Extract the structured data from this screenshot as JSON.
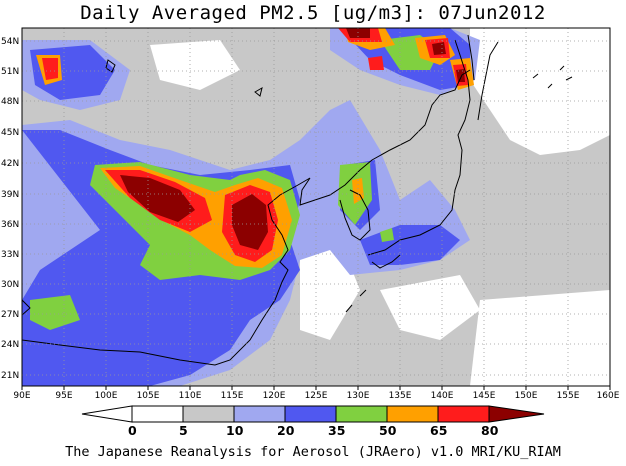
{
  "title": "Daily Averaged PM2.5 [ug/m3]: 07Jun2012",
  "footer": "The Japanese Reanalysis for Aerosol (JRAero) v1.0 MRI/KU_RIAM",
  "lon_ticks": [
    "90E",
    "95E",
    "100E",
    "105E",
    "110E",
    "115E",
    "120E",
    "125E",
    "130E",
    "135E",
    "140E",
    "145E",
    "150E",
    "155E",
    "160E"
  ],
  "lat_ticks": [
    "21N",
    "24N",
    "27N",
    "30N",
    "33N",
    "36N",
    "39N",
    "42N",
    "45N",
    "48N",
    "51N",
    "54N"
  ],
  "colorbar": {
    "labels": [
      "0",
      "5",
      "10",
      "20",
      "35",
      "50",
      "65",
      "80"
    ],
    "colors": [
      "#ffffff",
      "#c8c8c8",
      "#a0a8f0",
      "#5058f0",
      "#80d040",
      "#ffa000",
      "#ff1c1c",
      "#8c0000"
    ]
  }
}
